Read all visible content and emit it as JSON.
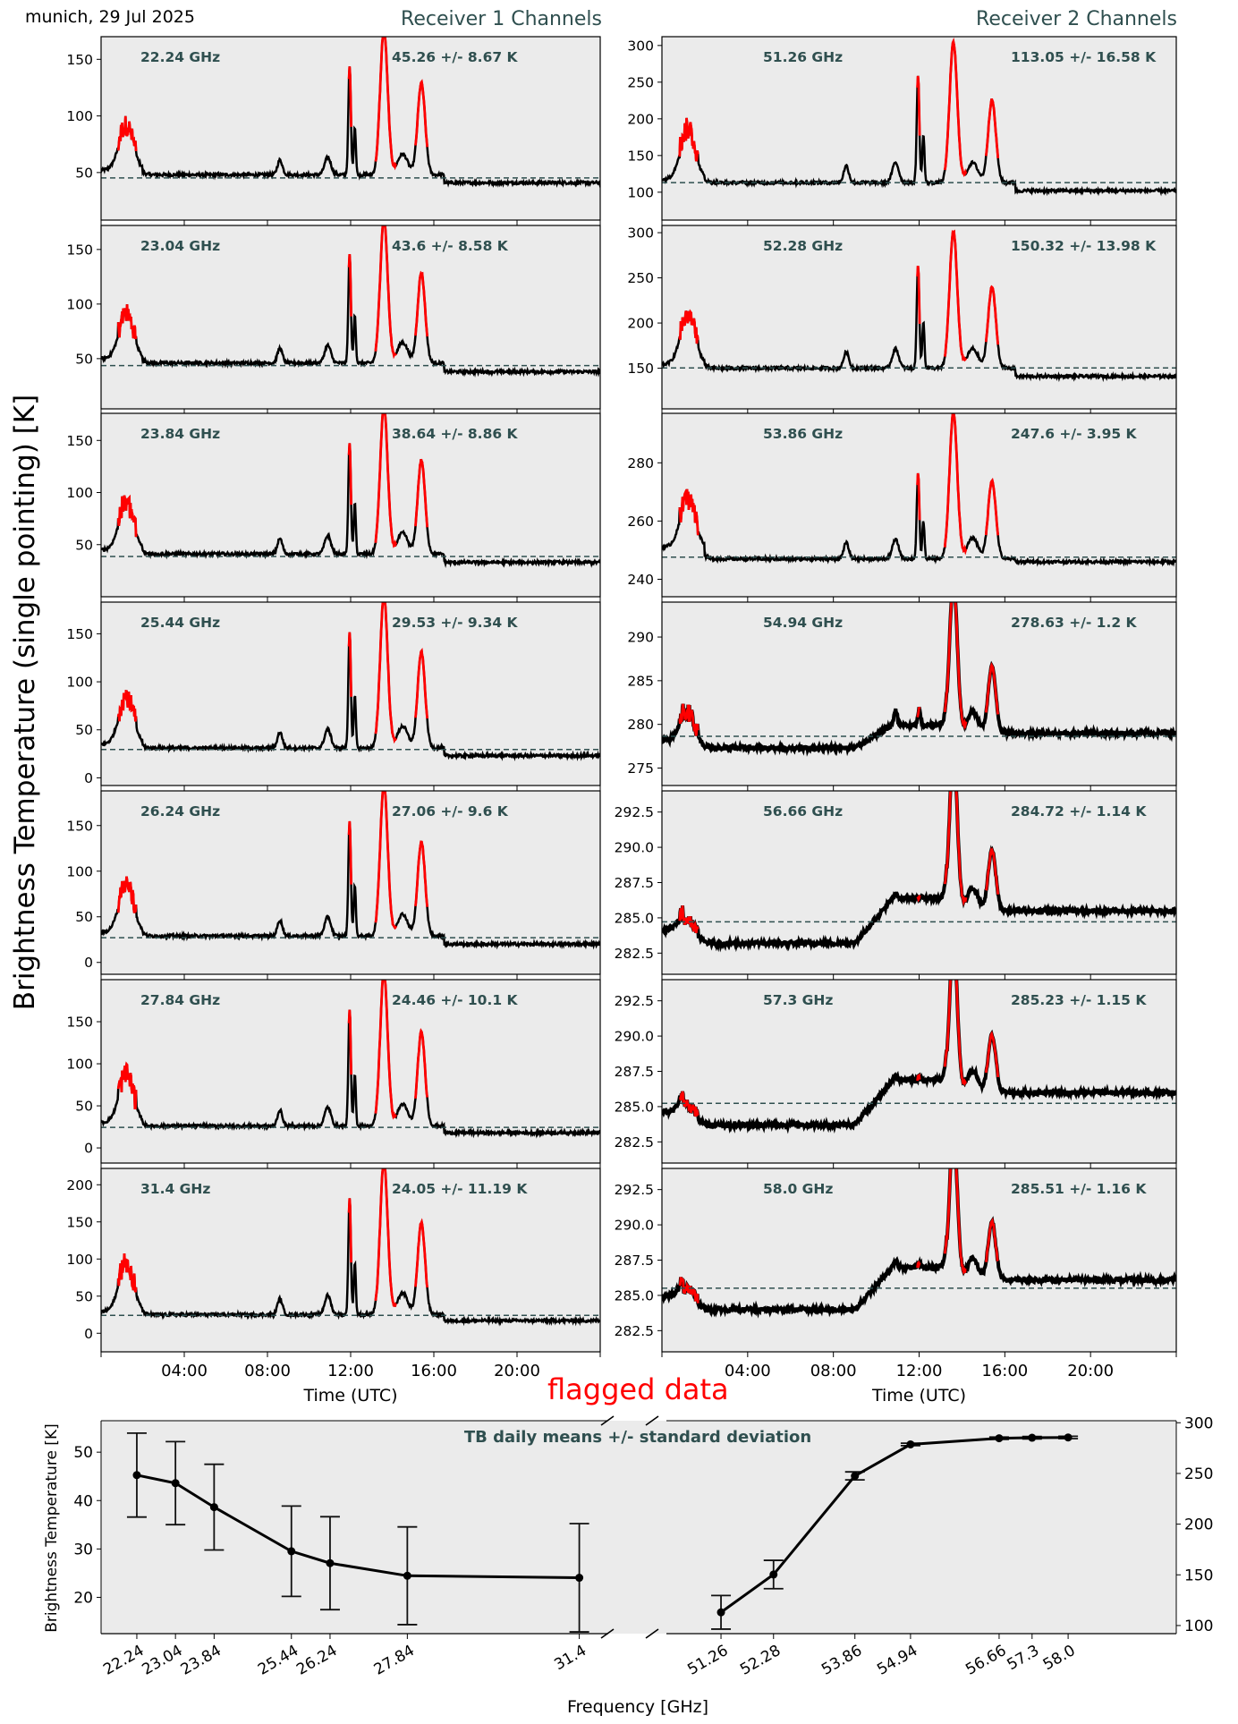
{
  "header": {
    "location_date": "munich, 29 Jul 2025",
    "receiver1_title": "Receiver 1 Channels",
    "receiver2_title": "Receiver 2 Channels",
    "y_axis_label": "Brightness Temperature (single pointing) [K]",
    "flagged_label": "flagged data"
  },
  "colors": {
    "panel_bg": "#ebebeb",
    "title_color": "#2f4f4f",
    "flagged": "#ff0000",
    "series": "#000000",
    "mean_line": "#2f4f4f"
  },
  "chart_data": [
    {
      "type": "line",
      "title": "Receiver 1 Channels",
      "xlabel": "Time (UTC)",
      "ylabel": "Brightness Temperature (single pointing) [K]",
      "x_ticks": [
        "04:00",
        "08:00",
        "12:00",
        "16:00",
        "20:00"
      ],
      "x_range_hours": [
        0,
        24
      ],
      "legend": "none",
      "grid": false,
      "panels": [
        {
          "freq": "22.24 GHz",
          "stat": "45.26 +/- 8.67 K",
          "mean": 45.26,
          "ylim": [
            8,
            170
          ],
          "yticks": [
            50,
            100,
            150
          ],
          "ytick_labels": [
            "50",
            "100",
            "150"
          ],
          "base": 48,
          "end": 41,
          "peaks": {
            "p1": 100,
            "p2": 143,
            "p3": 170,
            "p4": 138
          }
        },
        {
          "freq": "23.04 GHz",
          "stat": "43.6 +/- 8.58 K",
          "mean": 43.6,
          "ylim": [
            4,
            172
          ],
          "yticks": [
            50,
            100,
            150
          ],
          "ytick_labels": [
            "50",
            "100",
            "150"
          ],
          "base": 46,
          "end": 38,
          "peaks": {
            "p1": 100,
            "p2": 145,
            "p3": 172,
            "p4": 138
          }
        },
        {
          "freq": "23.84 GHz",
          "stat": "38.64 +/- 8.86 K",
          "mean": 38.64,
          "ylim": [
            0,
            176
          ],
          "yticks": [
            50,
            100,
            150
          ],
          "ytick_labels": [
            "50",
            "100",
            "150"
          ],
          "base": 41,
          "end": 33,
          "peaks": {
            "p1": 100,
            "p2": 148,
            "p3": 176,
            "p4": 141
          }
        },
        {
          "freq": "25.44 GHz",
          "stat": "29.53 +/- 9.34 K",
          "mean": 29.53,
          "ylim": [
            -8,
            183
          ],
          "yticks": [
            0,
            50,
            100,
            150
          ],
          "ytick_labels": [
            "0",
            "50",
            "100",
            "150"
          ],
          "base": 31,
          "end": 23,
          "peaks": {
            "p1": 97,
            "p2": 152,
            "p3": 183,
            "p4": 142
          }
        },
        {
          "freq": "26.24 GHz",
          "stat": "27.06 +/- 9.6 K",
          "mean": 27.06,
          "ylim": [
            -13,
            188
          ],
          "yticks": [
            0,
            50,
            100,
            150
          ],
          "ytick_labels": [
            "0",
            "50",
            "100",
            "150"
          ],
          "base": 29,
          "end": 20,
          "peaks": {
            "p1": 98,
            "p2": 155,
            "p3": 188,
            "p4": 144
          }
        },
        {
          "freq": "27.84 GHz",
          "stat": "24.46 +/- 10.1 K",
          "mean": 24.46,
          "ylim": [
            -18,
            200
          ],
          "yticks": [
            0,
            50,
            100,
            150
          ],
          "ytick_labels": [
            "0",
            "50",
            "100",
            "150"
          ],
          "base": 26,
          "end": 18,
          "peaks": {
            "p1": 101,
            "p2": 163,
            "p3": 200,
            "p4": 150
          }
        },
        {
          "freq": "31.4 GHz",
          "stat": "24.05 +/- 11.19 K",
          "mean": 24.05,
          "ylim": [
            -25,
            222
          ],
          "yticks": [
            0,
            50,
            100,
            150,
            200
          ],
          "ytick_labels": [
            "0",
            "50",
            "100",
            "150",
            "200"
          ],
          "base": 25,
          "end": 17,
          "peaks": {
            "p1": 112,
            "p2": 182,
            "p3": 222,
            "p4": 162
          }
        }
      ]
    },
    {
      "type": "line",
      "title": "Receiver 2 Channels",
      "xlabel": "Time (UTC)",
      "x_ticks": [
        "04:00",
        "08:00",
        "12:00",
        "16:00",
        "20:00"
      ],
      "x_range_hours": [
        0,
        24
      ],
      "legend": "none",
      "grid": false,
      "panels": [
        {
          "freq": "51.26 GHz",
          "stat": "113.05 +/- 16.58 K",
          "mean": 113.05,
          "ylim": [
            62,
            312
          ],
          "yticks": [
            100,
            150,
            200,
            250,
            300
          ],
          "ytick_labels": [
            "100",
            "150",
            "200",
            "250",
            "300"
          ],
          "base": 113,
          "end": 102,
          "peaks": {
            "p1": 205,
            "p2": 258,
            "p3": 295,
            "p4": 238
          }
        },
        {
          "freq": "52.28 GHz",
          "stat": "150.32 +/- 13.98 K",
          "mean": 150.32,
          "ylim": [
            105,
            308
          ],
          "yticks": [
            150,
            200,
            250,
            300
          ],
          "ytick_labels": [
            "150",
            "200",
            "250",
            "300"
          ],
          "base": 150,
          "end": 141,
          "peaks": {
            "p1": 222,
            "p2": 264,
            "p3": 294,
            "p4": 250
          }
        },
        {
          "freq": "53.86 GHz",
          "stat": "247.6 +/- 3.95 K",
          "mean": 247.6,
          "ylim": [
            234,
            297
          ],
          "yticks": [
            240,
            260,
            280
          ],
          "ytick_labels": [
            "240",
            "260",
            "280"
          ],
          "base": 247,
          "end": 246,
          "peaks": {
            "p1": 269,
            "p2": 276,
            "p3": 295,
            "p4": 277
          }
        },
        {
          "freq": "54.94 GHz",
          "stat": "278.63 +/- 1.2 K",
          "mean": 278.63,
          "ylim": [
            273,
            294
          ],
          "yticks": [
            275,
            280,
            285,
            290
          ],
          "ytick_labels": [
            "275",
            "280",
            "285",
            "290"
          ],
          "base": 277.3,
          "end": 279,
          "peaks": {
            "p1": 282.5,
            "p2": 283,
            "p3": 294,
            "p4": 285.7
          }
        },
        {
          "freq": "56.66 GHz",
          "stat": "284.72 +/- 1.14 K",
          "mean": 284.72,
          "ylim": [
            281,
            294
          ],
          "yticks": [
            282.5,
            285.0,
            287.5,
            290.0,
            292.5
          ],
          "ytick_labels": [
            "282.5",
            "285.0",
            "287.5",
            "290.0",
            "292.5"
          ],
          "base": 283.2,
          "end": 285.5,
          "peaks": {
            "p1": 285.3,
            "p2": 286.5,
            "p3": 294,
            "p4": 287.9
          }
        },
        {
          "freq": "57.3 GHz",
          "stat": "285.23 +/- 1.15 K",
          "mean": 285.23,
          "ylim": [
            281,
            294
          ],
          "yticks": [
            282.5,
            285.0,
            287.5,
            290.0,
            292.5
          ],
          "ytick_labels": [
            "282.5",
            "285.0",
            "287.5",
            "290.0",
            "292.5"
          ],
          "base": 283.7,
          "end": 286,
          "peaks": {
            "p1": 285.6,
            "p2": 287.2,
            "p3": 294,
            "p4": 288.2
          }
        },
        {
          "freq": "58.0 GHz",
          "stat": "285.51 +/- 1.16 K",
          "mean": 285.51,
          "ylim": [
            281,
            294
          ],
          "yticks": [
            282.5,
            285.0,
            287.5,
            290.0,
            292.5
          ],
          "ytick_labels": [
            "282.5",
            "285.0",
            "287.5",
            "290.0",
            "292.5"
          ],
          "base": 284.0,
          "end": 286.1,
          "peaks": {
            "p1": 285.9,
            "p2": 287.4,
            "p3": 294,
            "p4": 288.5
          }
        }
      ]
    },
    {
      "type": "line",
      "title": "TB daily means +/- standard deviation",
      "xlabel": "Frequency [GHz]",
      "ylabel": "Brightness Temperature [K]",
      "legend": "none",
      "grid": false,
      "left": {
        "x": [
          22.24,
          23.04,
          23.84,
          25.44,
          26.24,
          27.84,
          31.4
        ],
        "x_labels": [
          "22.24",
          "23.04",
          "23.84",
          "25.44",
          "26.24",
          "27.84",
          "31.4"
        ],
        "y": [
          45.26,
          43.6,
          38.64,
          29.53,
          27.06,
          24.46,
          24.05
        ],
        "err": [
          8.67,
          8.58,
          8.86,
          9.34,
          9.6,
          10.1,
          11.19
        ],
        "xlim": [
          21.5,
          32.0
        ],
        "ylim": [
          12.5,
          56.5
        ],
        "yticks": [
          20,
          30,
          40,
          50
        ],
        "ytick_labels": [
          "20",
          "30",
          "40",
          "50"
        ]
      },
      "right": {
        "x": [
          51.26,
          52.28,
          53.86,
          54.94,
          56.66,
          57.3,
          58.0
        ],
        "x_labels": [
          "51.26",
          "52.28",
          "53.86",
          "54.94",
          "56.66",
          "57.3",
          "58.0"
        ],
        "y": [
          113.05,
          150.32,
          247.6,
          278.63,
          284.72,
          285.23,
          285.51
        ],
        "err": [
          16.58,
          13.98,
          3.95,
          1.2,
          1.14,
          1.15,
          1.16
        ],
        "xlim": [
          50.2,
          60.1
        ],
        "ylim": [
          92,
          302
        ],
        "yticks": [
          100,
          150,
          200,
          250,
          300
        ],
        "ytick_labels": [
          "100",
          "150",
          "200",
          "250",
          "300"
        ]
      }
    }
  ]
}
